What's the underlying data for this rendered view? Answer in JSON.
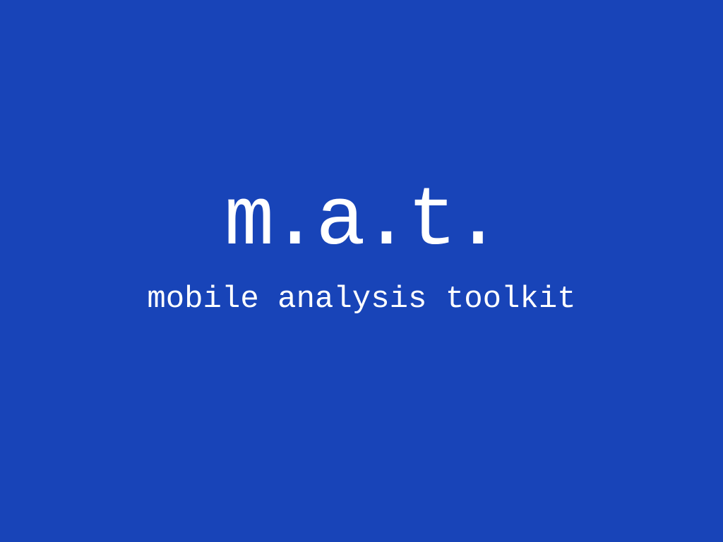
{
  "splash": {
    "logo": "m.a.t.",
    "tagline": "mobile analysis toolkit"
  },
  "colors": {
    "background": "#1844b8",
    "text": "#ffffff"
  }
}
